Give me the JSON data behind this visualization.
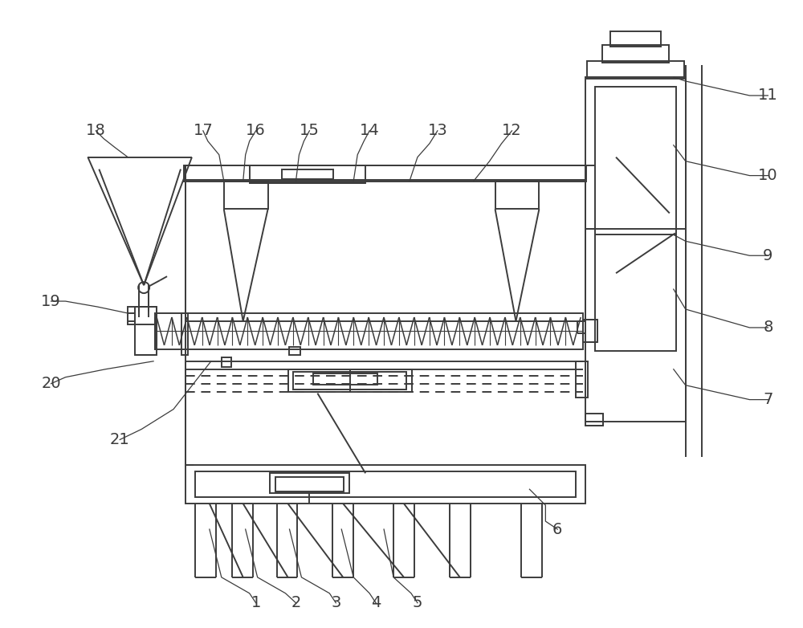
{
  "bg_color": "#ffffff",
  "lc": "#3c3c3c",
  "lw": 1.4,
  "figsize": [
    10.0,
    7.82
  ],
  "dpi": 100,
  "labels": [
    [
      "1",
      318,
      752
    ],
    [
      "2",
      368,
      752
    ],
    [
      "3",
      418,
      752
    ],
    [
      "4",
      468,
      752
    ],
    [
      "5",
      520,
      752
    ],
    [
      "6",
      695,
      660
    ],
    [
      "7",
      958,
      498
    ],
    [
      "8",
      958,
      408
    ],
    [
      "9",
      958,
      318
    ],
    [
      "10",
      958,
      218
    ],
    [
      "11",
      958,
      118
    ],
    [
      "12",
      638,
      162
    ],
    [
      "13",
      545,
      162
    ],
    [
      "14",
      460,
      162
    ],
    [
      "15",
      385,
      162
    ],
    [
      "16",
      318,
      162
    ],
    [
      "17",
      252,
      162
    ],
    [
      "18",
      118,
      162
    ],
    [
      "19",
      62,
      375
    ],
    [
      "20",
      62,
      478
    ],
    [
      "21",
      148,
      548
    ]
  ]
}
